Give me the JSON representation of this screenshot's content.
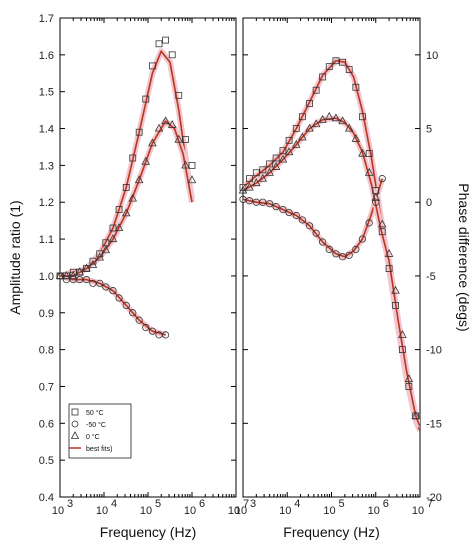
{
  "chart_data": [
    {
      "type": "scatter",
      "panel": "left",
      "xlabel": "Frequency (Hz)",
      "ylabel": "Amplitude ratio (1)",
      "xscale": "log",
      "xlim": [
        1000,
        10000000
      ],
      "ylim": [
        0.4,
        1.7
      ],
      "ytick_labels": [
        "0.4",
        "0.5",
        "0.6",
        "0.7",
        "0.8",
        "0.9",
        "1.0",
        "1.1",
        "1.2",
        "1.3",
        "1.4",
        "1.5",
        "1.6",
        "1.7"
      ],
      "xtick_labels": [
        "10",
        "10",
        "10",
        "10",
        "10"
      ],
      "xtick_exponents": [
        "3",
        "4",
        "5",
        "6",
        "7"
      ],
      "legend_position": "bottom-left",
      "legend": [
        {
          "label": "50 °C",
          "marker": "square"
        },
        {
          "label": "-50 °C",
          "marker": "circle"
        },
        {
          "label": "0 °C",
          "marker": "triangle"
        },
        {
          "label": "best fits)",
          "marker": "line"
        }
      ],
      "series": [
        {
          "marker": "square",
          "x": [
            1000,
            1400,
            2000,
            2800,
            4000,
            5600,
            8000,
            11000,
            16000,
            22000,
            32000,
            45000,
            63000,
            89000,
            126000,
            178000,
            251000,
            355000,
            500000,
            710000,
            1000000
          ],
          "y": [
            1.0,
            1.0,
            1.01,
            1.01,
            1.02,
            1.04,
            1.06,
            1.09,
            1.13,
            1.18,
            1.24,
            1.32,
            1.39,
            1.48,
            1.57,
            1.63,
            1.64,
            1.6,
            1.49,
            1.37,
            1.3
          ]
        },
        {
          "marker": "circle",
          "x": [
            1000,
            1400,
            2000,
            2800,
            4000,
            5600,
            8000,
            11000,
            16000,
            22000,
            32000,
            45000,
            63000,
            89000,
            126000,
            178000,
            251000
          ],
          "y": [
            1.0,
            0.99,
            0.99,
            0.99,
            0.99,
            0.98,
            0.98,
            0.97,
            0.96,
            0.94,
            0.92,
            0.9,
            0.88,
            0.86,
            0.85,
            0.84,
            0.84
          ]
        },
        {
          "marker": "triangle",
          "x": [
            1000,
            1400,
            2000,
            2800,
            4000,
            5600,
            8000,
            11000,
            16000,
            22000,
            32000,
            45000,
            63000,
            89000,
            126000,
            178000,
            251000,
            355000,
            500000,
            710000,
            1000000
          ],
          "y": [
            1.0,
            1.0,
            1.0,
            1.01,
            1.02,
            1.03,
            1.05,
            1.07,
            1.1,
            1.13,
            1.17,
            1.21,
            1.26,
            1.31,
            1.36,
            1.4,
            1.42,
            1.41,
            1.37,
            1.3,
            1.26
          ]
        },
        {
          "marker": "line",
          "name": "fit-50",
          "x": [
            1000,
            2000,
            4000,
            8000,
            16000,
            32000,
            63000,
            126000,
            200000,
            316000,
            500000,
            800000,
            1000000
          ],
          "y": [
            1.0,
            1.01,
            1.02,
            1.06,
            1.13,
            1.24,
            1.39,
            1.55,
            1.61,
            1.58,
            1.45,
            1.28,
            1.21
          ]
        },
        {
          "marker": "line",
          "name": "fit-n50",
          "x": [
            1000,
            2000,
            4000,
            8000,
            16000,
            32000,
            63000,
            126000,
            251000
          ],
          "y": [
            1.0,
            0.99,
            0.99,
            0.98,
            0.96,
            0.92,
            0.88,
            0.85,
            0.84
          ]
        },
        {
          "marker": "line",
          "name": "fit-0",
          "x": [
            1000,
            2000,
            4000,
            8000,
            16000,
            32000,
            63000,
            126000,
            250000,
            400000,
            630000,
            1000000
          ],
          "y": [
            1.0,
            1.0,
            1.02,
            1.05,
            1.1,
            1.17,
            1.26,
            1.36,
            1.42,
            1.4,
            1.33,
            1.2
          ]
        }
      ]
    },
    {
      "type": "scatter",
      "panel": "right",
      "xlabel": "Frequency (Hz)",
      "ylabel": "Phase difference (degs)",
      "xscale": "log",
      "xlim": [
        1000,
        10000000
      ],
      "ylim": [
        -20,
        12.5
      ],
      "ytick_labels": [
        "10",
        "5",
        "0",
        "-5",
        "-10",
        "-15",
        "-20"
      ],
      "ytick_values": [
        10,
        5,
        0,
        -5,
        -10,
        -15,
        -20
      ],
      "xtick_labels": [
        "10",
        "10",
        "10",
        "10",
        "10"
      ],
      "xtick_exponents": [
        "3",
        "4",
        "5",
        "6",
        "7"
      ],
      "series": [
        {
          "marker": "square",
          "x": [
            1000,
            1400,
            2000,
            2800,
            4000,
            5600,
            8000,
            11000,
            16000,
            22000,
            32000,
            45000,
            63000,
            89000,
            126000,
            178000,
            251000,
            355000,
            500000,
            710000,
            1000000,
            1400000,
            2000000,
            2800000,
            4000000,
            5600000,
            8000000
          ],
          "y": [
            1.0,
            1.6,
            2.0,
            2.2,
            2.6,
            3.0,
            3.5,
            4.2,
            5.0,
            5.8,
            6.7,
            7.6,
            8.5,
            9.2,
            9.6,
            9.5,
            9.0,
            7.8,
            5.8,
            3.3,
            0.8,
            -2.0,
            -4.5,
            -7.0,
            -10.0,
            -12.5,
            -14.5
          ]
        },
        {
          "marker": "circle",
          "x": [
            1000,
            1400,
            2000,
            2800,
            4000,
            5600,
            8000,
            11000,
            16000,
            22000,
            32000,
            45000,
            63000,
            89000,
            126000,
            178000,
            251000,
            355000,
            500000,
            710000,
            1000000,
            1400000
          ],
          "y": [
            0.2,
            0.1,
            0.0,
            0.0,
            -0.1,
            -0.3,
            -0.5,
            -0.7,
            -0.9,
            -1.2,
            -1.6,
            -2.1,
            -2.7,
            -3.2,
            -3.5,
            -3.7,
            -3.6,
            -3.2,
            -2.5,
            -1.4,
            0.0,
            1.6
          ]
        },
        {
          "marker": "triangle",
          "x": [
            1000,
            1400,
            2000,
            2800,
            4000,
            5600,
            8000,
            11000,
            16000,
            22000,
            32000,
            45000,
            63000,
            89000,
            126000,
            178000,
            251000,
            355000,
            500000,
            710000,
            1000000,
            1400000,
            2000000,
            2800000,
            4000000,
            5600000,
            8000000
          ],
          "y": [
            0.8,
            1.0,
            1.3,
            1.6,
            2.0,
            2.4,
            2.9,
            3.4,
            3.9,
            4.4,
            5.0,
            5.3,
            5.6,
            5.8,
            5.7,
            5.5,
            5.0,
            4.3,
            3.3,
            2.0,
            0.3,
            -1.5,
            -3.5,
            -6.0,
            -9.0,
            -12.0,
            -14.5
          ]
        },
        {
          "marker": "line",
          "name": "fit-50",
          "x": [
            1000,
            2000,
            4000,
            8000,
            16000,
            32000,
            63000,
            126000,
            200000,
            316000,
            500000,
            800000,
            1300000,
            2000000,
            3200000,
            5000000,
            8000000,
            10000000
          ],
          "y": [
            1.0,
            1.8,
            2.5,
            3.4,
            5.0,
            6.8,
            8.6,
            9.6,
            9.5,
            8.5,
            6.2,
            3.0,
            -1.0,
            -4.5,
            -8.5,
            -12.0,
            -14.8,
            -15.5
          ]
        },
        {
          "marker": "line",
          "name": "fit-n50",
          "x": [
            1000,
            2000,
            4000,
            8000,
            16000,
            32000,
            63000,
            126000,
            200000,
            316000,
            500000,
            800000,
            1400000
          ],
          "y": [
            0.2,
            0.0,
            -0.1,
            -0.5,
            -0.9,
            -1.6,
            -2.7,
            -3.5,
            -3.7,
            -3.3,
            -2.5,
            -0.8,
            1.6
          ]
        },
        {
          "marker": "line",
          "name": "fit-0",
          "x": [
            1000,
            2000,
            4000,
            8000,
            16000,
            32000,
            63000,
            126000,
            200000,
            316000,
            500000,
            800000,
            1300000,
            2000000,
            3200000,
            5000000,
            8000000,
            10000000
          ],
          "y": [
            0.8,
            1.3,
            2.0,
            2.9,
            3.9,
            5.0,
            5.6,
            5.7,
            5.4,
            4.7,
            3.4,
            1.2,
            -1.8,
            -4.0,
            -8.0,
            -11.5,
            -14.5,
            -15.2
          ]
        }
      ]
    }
  ]
}
